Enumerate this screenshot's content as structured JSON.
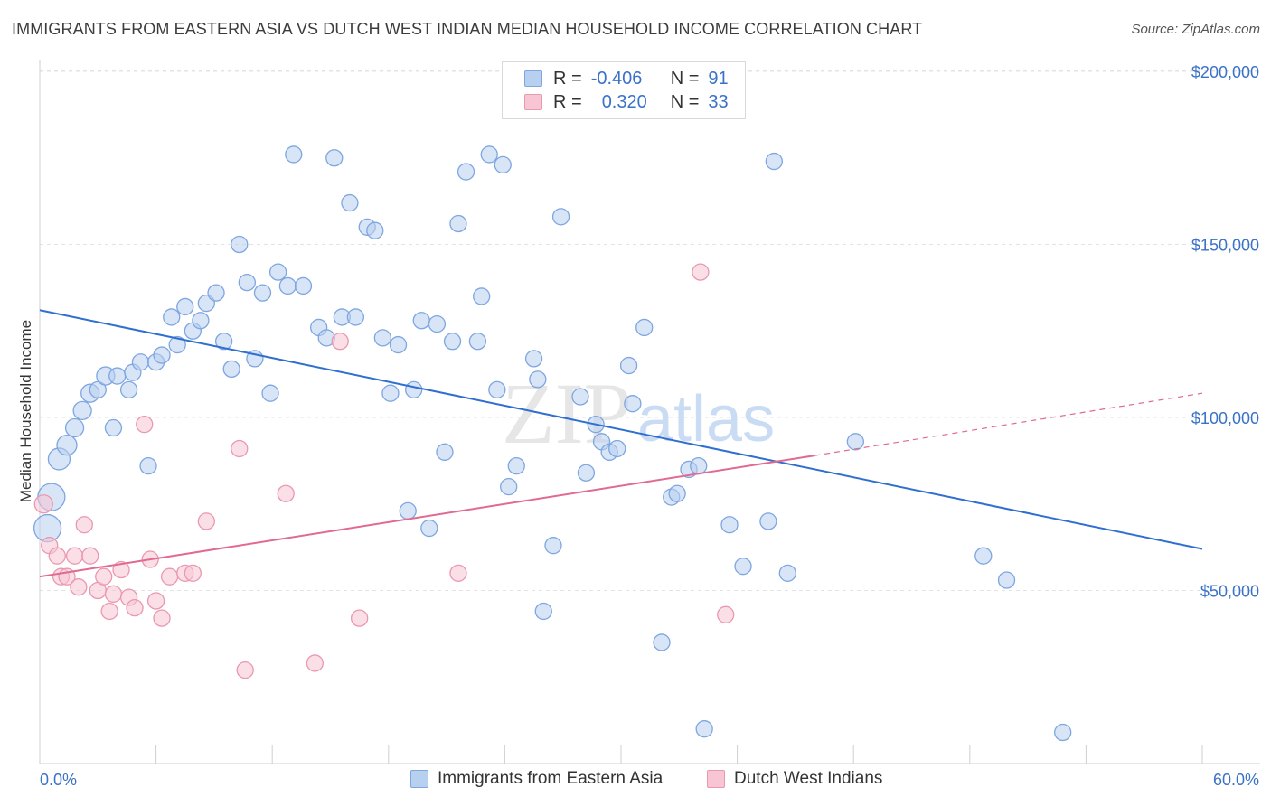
{
  "header": {
    "title": "IMMIGRANTS FROM EASTERN ASIA VS DUTCH WEST INDIAN MEDIAN HOUSEHOLD INCOME CORRELATION CHART",
    "source": "Source: ZipAtlas.com"
  },
  "watermark": {
    "zip": "ZIP",
    "atlas": "atlas"
  },
  "legend_stats": {
    "r_label": "R =",
    "n_label": "N =",
    "rows": [
      {
        "r": "-0.406",
        "n": "91",
        "color": "#b8d0f0"
      },
      {
        "r": "0.320",
        "n": "33",
        "color": "#f7c5d3"
      }
    ]
  },
  "bottom_legend": {
    "items": [
      {
        "label": "Immigrants from Eastern Asia",
        "color": "#b8d0f0"
      },
      {
        "label": "Dutch West Indians",
        "color": "#f7c5d3"
      }
    ]
  },
  "chart_data": {
    "type": "scatter",
    "title": "IMMIGRANTS FROM EASTERN ASIA VS DUTCH WEST INDIAN MEDIAN HOUSEHOLD INCOME CORRELATION CHART",
    "xlabel": "",
    "ylabel": "Median Household Income",
    "xlim": [
      0,
      60
    ],
    "ylim": [
      0,
      205000
    ],
    "x_tick_labels": [
      "0.0%",
      "60.0%"
    ],
    "y_ticks": [
      50000,
      100000,
      150000,
      200000
    ],
    "y_tick_labels": [
      "$50,000",
      "$100,000",
      "$150,000",
      "$200,000"
    ],
    "grid": true,
    "legend_placement": "top-center",
    "series": [
      {
        "name": "Immigrants from Eastern Asia",
        "color": "#7ea6e0",
        "fill": "#b8d0f0",
        "r": -0.406,
        "n": 91,
        "trend": {
          "x": [
            0,
            60
          ],
          "y": [
            131000,
            62000
          ]
        },
        "points": [
          [
            0.6,
            77000,
            15
          ],
          [
            0.4,
            68000,
            15
          ],
          [
            1.0,
            88000,
            12
          ],
          [
            1.4,
            92000,
            11
          ],
          [
            1.8,
            97000,
            10
          ],
          [
            2.2,
            102000,
            10
          ],
          [
            2.6,
            107000,
            10
          ],
          [
            3.0,
            108000,
            9
          ],
          [
            3.4,
            112000,
            10
          ],
          [
            3.8,
            97000,
            9
          ],
          [
            4.0,
            112000,
            9
          ],
          [
            4.6,
            108000,
            9
          ],
          [
            4.8,
            113000,
            9
          ],
          [
            5.2,
            116000,
            9
          ],
          [
            5.6,
            86000,
            9
          ],
          [
            6.0,
            116000,
            9
          ],
          [
            6.3,
            118000,
            9
          ],
          [
            6.8,
            129000,
            9
          ],
          [
            7.1,
            121000,
            9
          ],
          [
            7.5,
            132000,
            9
          ],
          [
            7.9,
            125000,
            9
          ],
          [
            8.3,
            128000,
            9
          ],
          [
            8.6,
            133000,
            9
          ],
          [
            9.1,
            136000,
            9
          ],
          [
            9.5,
            122000,
            9
          ],
          [
            9.9,
            114000,
            9
          ],
          [
            10.3,
            150000,
            9
          ],
          [
            10.7,
            139000,
            9
          ],
          [
            11.1,
            117000,
            9
          ],
          [
            11.5,
            136000,
            9
          ],
          [
            11.9,
            107000,
            9
          ],
          [
            12.3,
            142000,
            9
          ],
          [
            12.8,
            138000,
            9
          ],
          [
            13.6,
            138000,
            9
          ],
          [
            13.1,
            176000,
            9
          ],
          [
            14.4,
            126000,
            9
          ],
          [
            14.8,
            123000,
            9
          ],
          [
            15.2,
            175000,
            9
          ],
          [
            15.6,
            129000,
            9
          ],
          [
            16.0,
            162000,
            9
          ],
          [
            16.3,
            129000,
            9
          ],
          [
            16.9,
            155000,
            9
          ],
          [
            17.3,
            154000,
            9
          ],
          [
            17.7,
            123000,
            9
          ],
          [
            18.1,
            107000,
            9
          ],
          [
            18.5,
            121000,
            9
          ],
          [
            19.0,
            73000,
            9
          ],
          [
            19.3,
            108000,
            9
          ],
          [
            19.7,
            128000,
            9
          ],
          [
            20.1,
            68000,
            9
          ],
          [
            20.5,
            127000,
            9
          ],
          [
            20.9,
            90000,
            9
          ],
          [
            21.3,
            122000,
            9
          ],
          [
            21.6,
            156000,
            9
          ],
          [
            22.0,
            171000,
            9
          ],
          [
            22.6,
            122000,
            9
          ],
          [
            22.8,
            135000,
            9
          ],
          [
            23.2,
            176000,
            9
          ],
          [
            23.6,
            108000,
            9
          ],
          [
            23.9,
            173000,
            9
          ],
          [
            24.2,
            80000,
            9
          ],
          [
            24.6,
            86000,
            9
          ],
          [
            25.5,
            117000,
            9
          ],
          [
            25.7,
            111000,
            9
          ],
          [
            26.0,
            44000,
            9
          ],
          [
            26.5,
            63000,
            9
          ],
          [
            26.9,
            158000,
            9
          ],
          [
            27.9,
            106000,
            9
          ],
          [
            28.2,
            84000,
            9
          ],
          [
            28.7,
            98000,
            9
          ],
          [
            29.0,
            93000,
            9
          ],
          [
            29.4,
            90000,
            9
          ],
          [
            29.8,
            91000,
            9
          ],
          [
            30.4,
            115000,
            9
          ],
          [
            30.6,
            104000,
            9
          ],
          [
            31.2,
            126000,
            9
          ],
          [
            32.1,
            35000,
            9
          ],
          [
            32.6,
            77000,
            9
          ],
          [
            32.9,
            78000,
            9
          ],
          [
            33.5,
            85000,
            9
          ],
          [
            34.0,
            86000,
            9
          ],
          [
            34.3,
            10000,
            9
          ],
          [
            35.6,
            69000,
            9
          ],
          [
            36.3,
            57000,
            9
          ],
          [
            37.6,
            70000,
            9
          ],
          [
            37.9,
            174000,
            9
          ],
          [
            38.6,
            55000,
            9
          ],
          [
            42.1,
            93000,
            9
          ],
          [
            48.7,
            60000,
            9
          ],
          [
            49.9,
            53000,
            9
          ],
          [
            52.8,
            9000,
            9
          ]
        ]
      },
      {
        "name": "Dutch West Indians",
        "color": "#ea97b0",
        "fill": "#f7c5d3",
        "r": 0.32,
        "n": 33,
        "trend": {
          "x": [
            0,
            40
          ],
          "y": [
            54000,
            89000
          ]
        },
        "trend_extension": {
          "x": [
            40,
            60
          ],
          "y": [
            89000,
            107000
          ]
        },
        "points": [
          [
            0.2,
            75000,
            10
          ],
          [
            0.5,
            63000,
            9
          ],
          [
            0.9,
            60000,
            9
          ],
          [
            1.1,
            54000,
            9
          ],
          [
            1.4,
            54000,
            9
          ],
          [
            1.8,
            60000,
            9
          ],
          [
            2.0,
            51000,
            9
          ],
          [
            2.3,
            69000,
            9
          ],
          [
            2.6,
            60000,
            9
          ],
          [
            3.0,
            50000,
            9
          ],
          [
            3.3,
            54000,
            9
          ],
          [
            3.6,
            44000,
            9
          ],
          [
            3.8,
            49000,
            9
          ],
          [
            4.2,
            56000,
            9
          ],
          [
            4.6,
            48000,
            9
          ],
          [
            4.9,
            45000,
            9
          ],
          [
            5.4,
            98000,
            9
          ],
          [
            5.7,
            59000,
            9
          ],
          [
            6.0,
            47000,
            9
          ],
          [
            6.3,
            42000,
            9
          ],
          [
            6.7,
            54000,
            9
          ],
          [
            7.5,
            55000,
            9
          ],
          [
            7.9,
            55000,
            9
          ],
          [
            8.6,
            70000,
            9
          ],
          [
            10.3,
            91000,
            9
          ],
          [
            10.6,
            27000,
            9
          ],
          [
            12.7,
            78000,
            9
          ],
          [
            14.2,
            29000,
            9
          ],
          [
            15.5,
            122000,
            9
          ],
          [
            16.5,
            42000,
            9
          ],
          [
            21.6,
            55000,
            9
          ],
          [
            34.1,
            142000,
            9
          ],
          [
            35.4,
            43000,
            9
          ]
        ]
      }
    ]
  }
}
